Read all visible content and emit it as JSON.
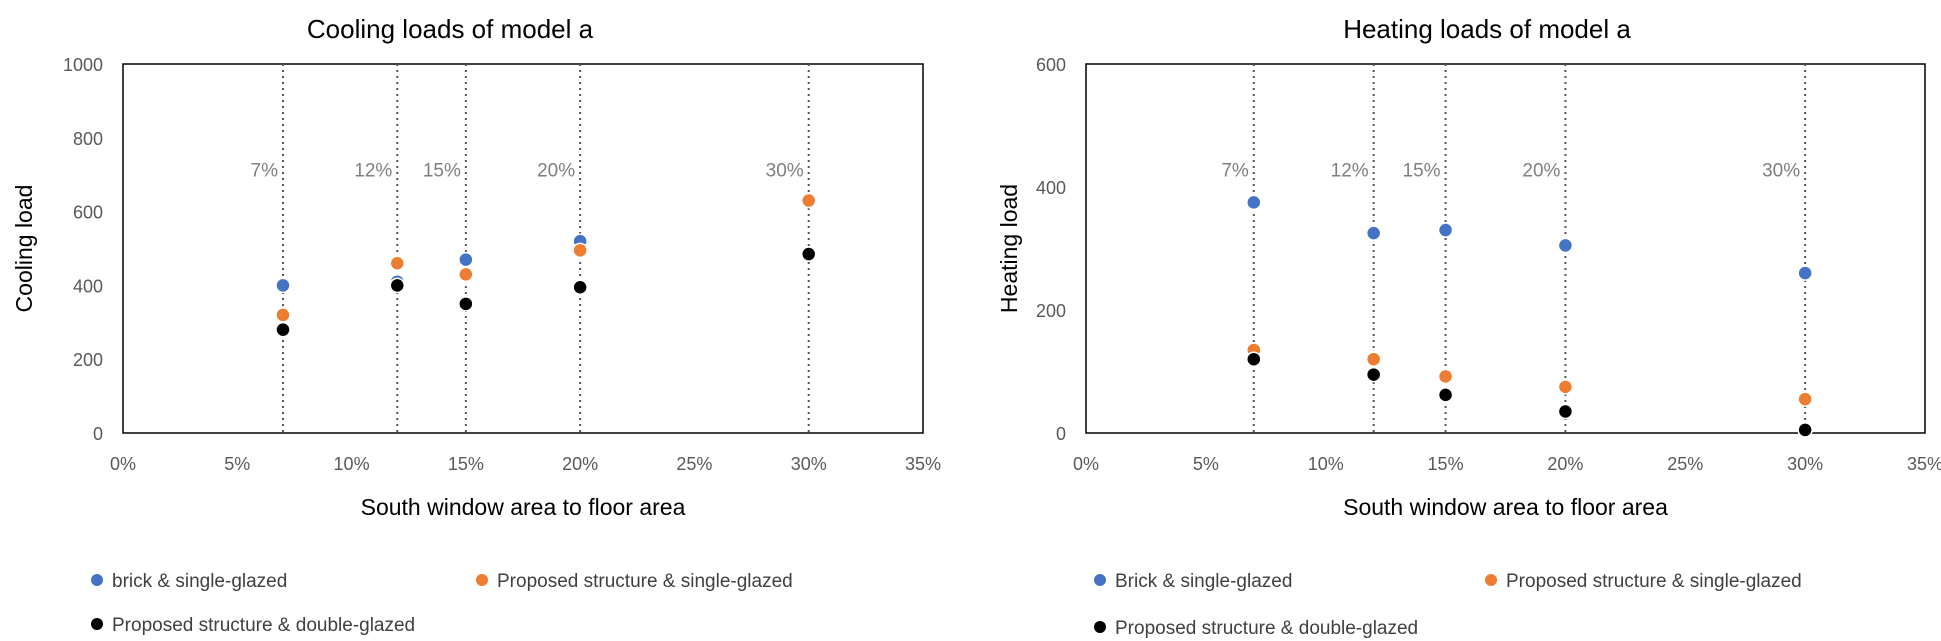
{
  "chart_data": [
    {
      "type": "scatter",
      "title": "Cooling loads of model a",
      "xlabel": "South window area to floor area",
      "ylabel": "Cooling load",
      "xlim": [
        0,
        35
      ],
      "ylim": [
        0,
        1000
      ],
      "x_ticks": [
        "0%",
        "5%",
        "10%",
        "15%",
        "20%",
        "25%",
        "30%",
        "35%"
      ],
      "x_tick_values": [
        0,
        5,
        10,
        15,
        20,
        25,
        30,
        35
      ],
      "y_ticks": [
        "0",
        "200",
        "400",
        "600",
        "800",
        "1000"
      ],
      "y_tick_values": [
        0,
        200,
        400,
        600,
        800,
        1000
      ],
      "vlines": [
        7,
        12,
        15,
        20,
        30
      ],
      "annotations": [
        {
          "text": "7%",
          "x": 7,
          "y": 695
        },
        {
          "text": "12%",
          "x": 12,
          "y": 695
        },
        {
          "text": "15%",
          "x": 15,
          "y": 695
        },
        {
          "text": "20%",
          "x": 20,
          "y": 695
        },
        {
          "text": "30%",
          "x": 30,
          "y": 695
        }
      ],
      "series": [
        {
          "name": "brick & single-glazed",
          "color": "#4472c4",
          "x": [
            7,
            12,
            15,
            20,
            30
          ],
          "y": [
            400,
            410,
            470,
            520,
            630
          ]
        },
        {
          "name": "Proposed structure & single-glazed",
          "color": "#ed7d31",
          "x": [
            7,
            12,
            15,
            20,
            30
          ],
          "y": [
            320,
            460,
            430,
            495,
            630
          ]
        },
        {
          "name": "Proposed structure & double-glazed",
          "color": "#000000",
          "x": [
            7,
            12,
            15,
            20,
            30
          ],
          "y": [
            280,
            400,
            350,
            395,
            485
          ]
        }
      ]
    },
    {
      "type": "scatter",
      "title": "Heating loads of model a",
      "xlabel": "South window area to floor area",
      "ylabel": "Heating load",
      "xlim": [
        0,
        35
      ],
      "ylim": [
        0,
        600
      ],
      "x_ticks": [
        "0%",
        "5%",
        "10%",
        "15%",
        "20%",
        "25%",
        "30%",
        "35%"
      ],
      "x_tick_values": [
        0,
        5,
        10,
        15,
        20,
        25,
        30,
        35
      ],
      "y_ticks": [
        "0",
        "200",
        "400",
        "600"
      ],
      "y_tick_values": [
        0,
        200,
        400,
        600
      ],
      "vlines": [
        7,
        12,
        15,
        20,
        30
      ],
      "annotations": [
        {
          "text": "7%",
          "x": 7,
          "y": 417
        },
        {
          "text": "12%",
          "x": 12,
          "y": 417
        },
        {
          "text": "15%",
          "x": 15,
          "y": 417
        },
        {
          "text": "20%",
          "x": 20,
          "y": 417
        },
        {
          "text": "30%",
          "x": 30,
          "y": 417
        }
      ],
      "series": [
        {
          "name": "Brick & single-glazed",
          "color": "#4472c4",
          "x": [
            7,
            12,
            15,
            20,
            30
          ],
          "y": [
            375,
            325,
            330,
            305,
            260
          ]
        },
        {
          "name": "Proposed structure & single-glazed",
          "color": "#ed7d31",
          "x": [
            7,
            12,
            15,
            20,
            30
          ],
          "y": [
            135,
            120,
            92,
            75,
            55
          ]
        },
        {
          "name": "Proposed structure & double-glazed",
          "color": "#000000",
          "x": [
            7,
            12,
            15,
            20,
            30
          ],
          "y": [
            120,
            95,
            62,
            35,
            5
          ]
        }
      ]
    }
  ]
}
